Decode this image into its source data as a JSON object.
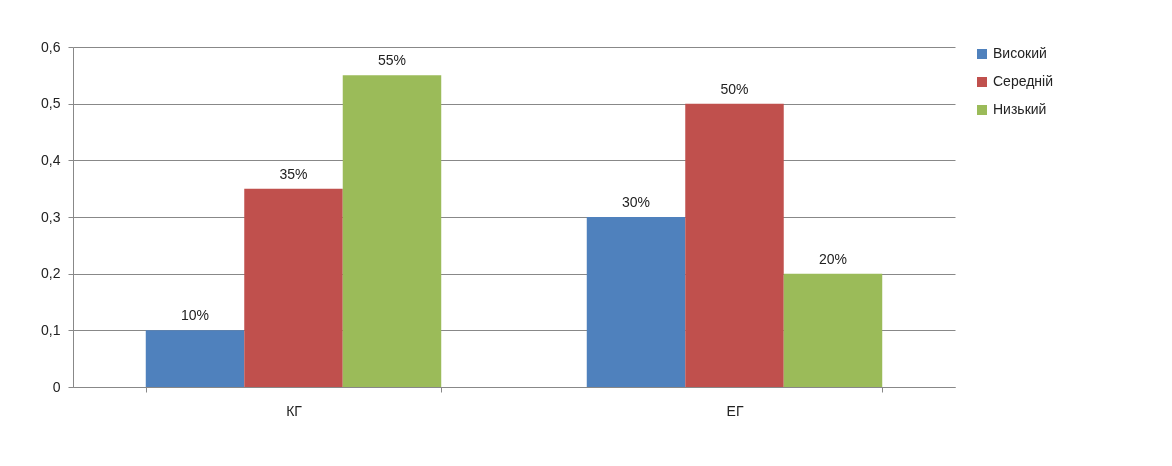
{
  "chart_data": {
    "type": "bar",
    "categories": [
      "КГ",
      "ЕГ"
    ],
    "series": [
      {
        "name": "Високий",
        "color": "#4f81bd",
        "values": [
          0.1,
          0.3
        ],
        "value_labels": [
          "10%",
          "30%"
        ]
      },
      {
        "name": "Середній",
        "color": "#c0504d",
        "values": [
          0.35,
          0.5
        ],
        "value_labels": [
          "35%",
          "50%"
        ]
      },
      {
        "name": "Низький",
        "color": "#9bbb59",
        "values": [
          0.55,
          0.2
        ],
        "value_labels": [
          "55%",
          "20%"
        ]
      }
    ],
    "ylim": [
      0,
      0.6
    ],
    "yticks": [
      0,
      {
        "value": 0.1,
        "label": "0,1"
      },
      {
        "value": 0.2,
        "label": "0,2"
      },
      {
        "value": 0.3,
        "label": "0,3"
      },
      {
        "value": 0.4,
        "label": "0,4"
      },
      {
        "value": 0.5,
        "label": "0,5"
      },
      {
        "value": 0.6,
        "label": "0,6"
      }
    ],
    "grid": "y",
    "legend": "right"
  }
}
